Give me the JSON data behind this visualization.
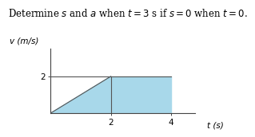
{
  "title_text": "Determine s and a when t = 3 s if s = 0 when t = 0.",
  "xlabel": "t (s)",
  "ylabel": "v (m/s)",
  "xlim": [
    0,
    4.8
  ],
  "ylim": [
    0,
    3.5
  ],
  "xticks": [
    2,
    4
  ],
  "yticks": [
    2
  ],
  "fill_color": "#a8d8ea",
  "line_color": "#555555",
  "bg_color": "#ffffff",
  "title_fontsize": 8.5,
  "axis_label_fontsize": 7.5,
  "tick_fontsize": 7.5
}
